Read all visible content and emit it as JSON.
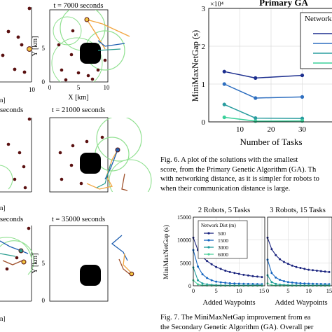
{
  "sim_panels": {
    "mid_top_time": "t = 7000 seconds",
    "left_mid_time": "seconds",
    "mid_mid_time": "t = 21000 seconds",
    "left_bot_time": "seconds",
    "mid_bot_time": "t = 35000 seconds",
    "y_axis_label": "Y [km]",
    "x_axis_label": "X [km]",
    "ticks": [
      "0",
      "5",
      "10"
    ],
    "colors": {
      "obstacle": "#000000",
      "comm_circle": "#8fe08f",
      "target": "#5a1010",
      "path_orange": "#f2a640",
      "path_blue": "#1f5fb0",
      "path_teal": "#2a9d8f",
      "path_brown": "#a0522d"
    }
  },
  "fig6_chart": {
    "title": "Primary GA",
    "exponent": "×10⁴",
    "y_label": "MiniMaxNetGap (s)",
    "x_label": "Number of Tasks",
    "y_ticks": [
      "0",
      "1",
      "2",
      "3"
    ],
    "x_ticks": [
      "10",
      "20",
      "30"
    ],
    "legend_title": "Network"
  },
  "fig6_caption": [
    "Fig. 6.    A plot of the solutions with the smallest",
    "score, from the Primary Genetic Algorithm (GA). Th",
    "with networking distance, as it is simpler for robots to",
    "when their communication distance is large."
  ],
  "fig7_chart": {
    "panel_titles": [
      "2 Robots, 5 Tasks",
      "3 Robots, 15 Tasks"
    ],
    "y_label": "MiniMaxNetGap (s)",
    "x_label": "Added Waypoints",
    "y_ticks": [
      "0",
      "5000",
      "10000",
      "15000"
    ],
    "x_ticks_a": [
      "0",
      "5",
      "10",
      "15"
    ],
    "x_ticks_b": [
      "0",
      "5",
      "10",
      "15"
    ],
    "legend_title": "Network Dist (m)",
    "legend": [
      "500",
      "1500",
      "3000",
      "6000"
    ]
  },
  "fig7_caption": [
    "Fig. 7.    The MiniMaxNetGap improvement from ea",
    "the Secondary Genetic Algorithm (GA). Overall per"
  ],
  "chart_data": [
    {
      "type": "line",
      "title": "Primary GA",
      "xlabel": "Number of Tasks",
      "ylabel": "MiniMaxNetGap (s)",
      "ylim": [
        0,
        30000
      ],
      "xlim": [
        0,
        40
      ],
      "x": [
        5,
        15,
        30
      ],
      "series": [
        {
          "values": [
            13300,
            11600,
            12300
          ],
          "color": "#1d2f8f"
        },
        {
          "values": [
            10000,
            6300,
            6600
          ],
          "color": "#2f6fc0"
        },
        {
          "values": [
            4600,
            1000,
            900
          ],
          "color": "#2a9d9f"
        },
        {
          "values": [
            1200,
            200,
            250
          ],
          "color": "#3ad09a"
        }
      ],
      "legend": {
        "title": "Network",
        "placement": "top-right"
      }
    },
    {
      "type": "line",
      "title": "2 Robots, 5 Tasks",
      "xlabel": "Added Waypoints",
      "ylabel": "MiniMaxNetGap (s)",
      "ylim": [
        0,
        15000
      ],
      "xlim": [
        0,
        15
      ],
      "x": [
        0,
        1,
        2,
        3,
        4,
        5,
        6,
        7,
        8,
        9,
        10,
        11,
        12,
        13,
        14,
        15
      ],
      "series": [
        {
          "name": "500",
          "color": "#1a237e",
          "values": [
            10500,
            7800,
            6300,
            5400,
            4700,
            4100,
            3700,
            3300,
            3000,
            2800,
            2600,
            2400,
            2250,
            2100,
            2000,
            1900
          ]
        },
        {
          "name": "1500",
          "color": "#1565c0",
          "values": [
            7800,
            4200,
            2500,
            1700,
            1200,
            900,
            750,
            650,
            550,
            500,
            450,
            420,
            400,
            380,
            360,
            350
          ]
        },
        {
          "name": "3000",
          "color": "#1e9c9c",
          "values": [
            4000,
            1200,
            500,
            300,
            200,
            150,
            120,
            100,
            100,
            90,
            90,
            80,
            80,
            80,
            80,
            80
          ]
        },
        {
          "name": "6000",
          "color": "#4dd09a",
          "values": [
            1200,
            300,
            100,
            50,
            30,
            20,
            20,
            20,
            20,
            20,
            20,
            20,
            20,
            20,
            20,
            20
          ]
        }
      ],
      "legend": {
        "title": "Network Dist (m)",
        "placement": "top-left"
      }
    },
    {
      "type": "line",
      "title": "3 Robots, 15 Tasks",
      "xlabel": "Added Waypoints",
      "ylim": [
        0,
        15000
      ],
      "xlim": [
        0,
        15
      ],
      "x": [
        0,
        1,
        2,
        3,
        4,
        5,
        6,
        7,
        8,
        9,
        10,
        11,
        12,
        13,
        14,
        15
      ],
      "series": [
        {
          "name": "500",
          "color": "#1a237e",
          "values": [
            10500,
            8000,
            6700,
            5800,
            5200,
            4800,
            4400,
            4100,
            3900,
            3700,
            3500,
            3400,
            3300,
            3200,
            3100,
            3000
          ]
        },
        {
          "name": "1500",
          "color": "#1565c0",
          "values": [
            5700,
            2800,
            1800,
            1300,
            1000,
            800,
            700,
            600,
            550,
            500,
            450,
            420,
            400,
            380,
            360,
            350
          ]
        },
        {
          "name": "3000",
          "color": "#1e9c9c",
          "values": [
            2300,
            800,
            400,
            250,
            200,
            150,
            120,
            100,
            100,
            90,
            90,
            80,
            80,
            80,
            80,
            80
          ]
        },
        {
          "name": "6000",
          "color": "#4dd09a",
          "values": [
            500,
            150,
            60,
            40,
            30,
            20,
            20,
            20,
            20,
            20,
            20,
            20,
            20,
            20,
            20,
            20
          ]
        }
      ]
    }
  ]
}
